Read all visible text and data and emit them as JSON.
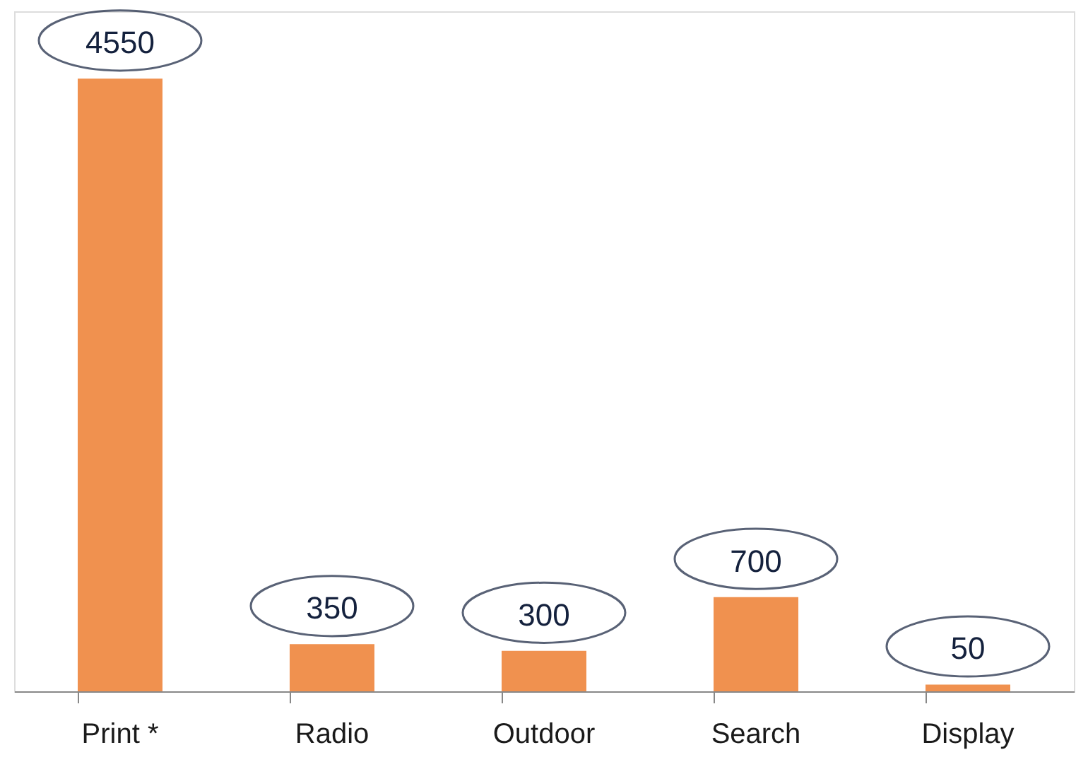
{
  "chart_data": {
    "type": "bar",
    "categories": [
      "Print *",
      "Radio",
      "Outdoor",
      "Search",
      "Display"
    ],
    "values": [
      4550,
      350,
      300,
      700,
      50
    ],
    "color": "#f0914f",
    "data_labels": true
  }
}
